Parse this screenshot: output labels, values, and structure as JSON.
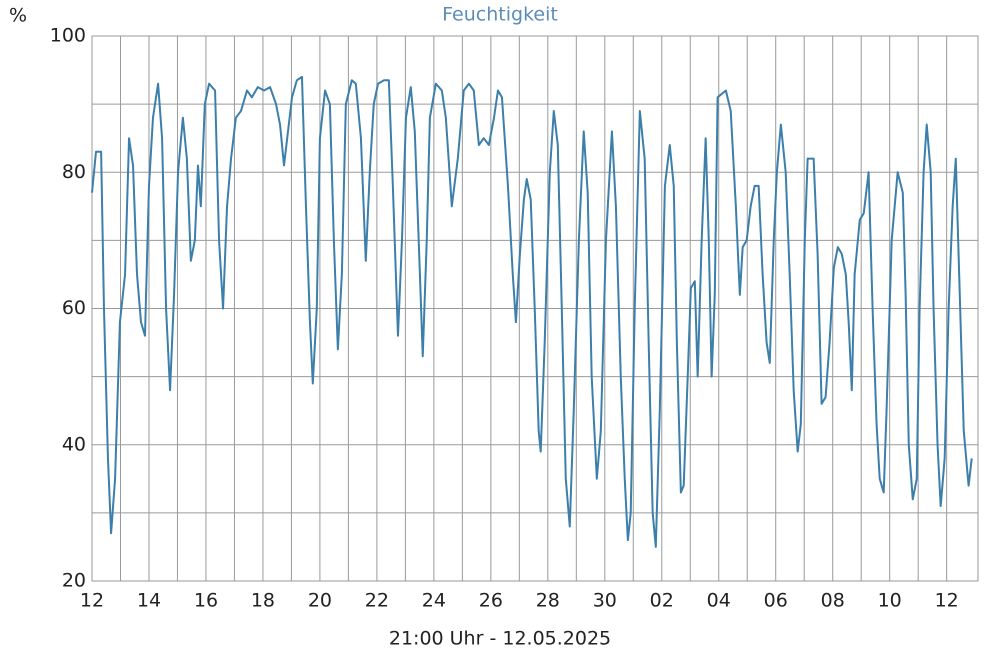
{
  "chart_data": {
    "type": "line",
    "title": "Feuchtigkeit",
    "y_label": "%",
    "x_label": "21:00 Uhr - 12.05.2025",
    "xlim": [
      0,
      31.1
    ],
    "ylim": [
      20,
      100
    ],
    "xticks": [
      {
        "value": 0,
        "label": "12"
      },
      {
        "value": 2,
        "label": "14"
      },
      {
        "value": 4,
        "label": "16"
      },
      {
        "value": 6,
        "label": "18"
      },
      {
        "value": 8,
        "label": "20"
      },
      {
        "value": 10,
        "label": "22"
      },
      {
        "value": 12,
        "label": "24"
      },
      {
        "value": 14,
        "label": "26"
      },
      {
        "value": 16,
        "label": "28"
      },
      {
        "value": 18,
        "label": "30"
      },
      {
        "value": 20,
        "label": "02"
      },
      {
        "value": 22,
        "label": "04"
      },
      {
        "value": 24,
        "label": "06"
      },
      {
        "value": 26,
        "label": "08"
      },
      {
        "value": 28,
        "label": "10"
      },
      {
        "value": 30,
        "label": "12"
      }
    ],
    "x_minor_ticks": [
      1,
      3,
      5,
      7,
      9,
      11,
      13,
      15,
      17,
      19,
      21,
      23,
      25,
      27,
      29
    ],
    "yticks": [
      20,
      40,
      60,
      80,
      100
    ],
    "y_minor_ticks": [
      30,
      50,
      70,
      90
    ],
    "grid": true,
    "x": [
      0,
      0.14,
      0.32,
      0.42,
      0.56,
      0.67,
      0.81,
      0.98,
      1.16,
      1.3,
      1.44,
      1.58,
      1.72,
      1.86,
      2.0,
      2.14,
      2.32,
      2.46,
      2.6,
      2.74,
      2.88,
      3.02,
      3.19,
      3.33,
      3.47,
      3.61,
      3.72,
      3.82,
      3.96,
      4.11,
      4.32,
      4.46,
      4.6,
      4.74,
      4.88,
      5.05,
      5.23,
      5.44,
      5.61,
      5.82,
      6.04,
      6.25,
      6.46,
      6.6,
      6.74,
      6.88,
      7.02,
      7.19,
      7.37,
      7.51,
      7.65,
      7.75,
      7.89,
      8.0,
      8.18,
      8.35,
      8.49,
      8.63,
      8.77,
      8.91,
      9.12,
      9.26,
      9.44,
      9.61,
      9.75,
      9.89,
      10.04,
      10.25,
      10.42,
      10.56,
      10.74,
      10.88,
      11.02,
      11.19,
      11.33,
      11.51,
      11.61,
      11.75,
      11.86,
      12.07,
      12.28,
      12.42,
      12.63,
      12.84,
      13.05,
      13.23,
      13.4,
      13.58,
      13.75,
      13.93,
      14.11,
      14.25,
      14.39,
      14.6,
      14.77,
      14.88,
      15.02,
      15.16,
      15.26,
      15.4,
      15.54,
      15.68,
      15.75,
      15.89,
      16.07,
      16.21,
      16.35,
      16.49,
      16.63,
      16.77,
      16.91,
      17.09,
      17.26,
      17.4,
      17.54,
      17.72,
      17.86,
      18.04,
      18.25,
      18.39,
      18.56,
      18.7,
      18.81,
      18.91,
      19.05,
      19.23,
      19.4,
      19.54,
      19.68,
      19.79,
      19.93,
      20.11,
      20.28,
      20.42,
      20.53,
      20.67,
      20.77,
      20.91,
      21.02,
      21.16,
      21.26,
      21.4,
      21.54,
      21.65,
      21.75,
      21.86,
      21.96,
      22.25,
      22.42,
      22.6,
      22.74,
      22.84,
      22.98,
      23.12,
      23.26,
      23.4,
      23.54,
      23.68,
      23.79,
      23.93,
      24.04,
      24.18,
      24.35,
      24.49,
      24.63,
      24.77,
      24.88,
      25.02,
      25.12,
      25.33,
      25.47,
      25.61,
      25.75,
      25.89,
      26.04,
      26.18,
      26.32,
      26.46,
      26.56,
      26.67,
      26.77,
      26.95,
      27.09,
      27.26,
      27.4,
      27.54,
      27.65,
      27.79,
      27.89,
      28.07,
      28.28,
      28.46,
      28.56,
      28.67,
      28.81,
      28.95,
      29.05,
      29.19,
      29.3,
      29.44,
      29.54,
      29.68,
      29.79,
      29.93,
      30.07,
      30.21,
      30.32,
      30.46,
      30.6,
      30.77,
      30.88
    ],
    "series": [
      {
        "name": "Feuchtigkeit",
        "color": "#3c7fab",
        "values": [
          77,
          83,
          83,
          60,
          38,
          27,
          35,
          58,
          65,
          85,
          81,
          65,
          58,
          56,
          78,
          88,
          93,
          85,
          60,
          48,
          62,
          80,
          88,
          82,
          67,
          70,
          81,
          75,
          90,
          93,
          92,
          70,
          60,
          75,
          82,
          88,
          89,
          92,
          91,
          92.5,
          92,
          92.5,
          90,
          87,
          81,
          86,
          91,
          93.5,
          94,
          75,
          58,
          49,
          60,
          85,
          92,
          90,
          70,
          54,
          65,
          90,
          93.5,
          93,
          85,
          67,
          80,
          90,
          93,
          93.5,
          93.5,
          78,
          56,
          70,
          88,
          92.5,
          86,
          65,
          53,
          70,
          88,
          93,
          92,
          88,
          75,
          82,
          92,
          93,
          92,
          84,
          85,
          84,
          88,
          92,
          91,
          78,
          65,
          58,
          68,
          76,
          79,
          76,
          60,
          42,
          39,
          55,
          80,
          89,
          84,
          60,
          35,
          28,
          45,
          70,
          86,
          77,
          50,
          35,
          42,
          70,
          86,
          75,
          50,
          35,
          26,
          30,
          60,
          89,
          82,
          55,
          30,
          25,
          45,
          78,
          84,
          78,
          55,
          33,
          34,
          50,
          63,
          64,
          50,
          70,
          85,
          70,
          50,
          62,
          91,
          92,
          89,
          75,
          62,
          69,
          70,
          75,
          78,
          78,
          65,
          55,
          52,
          70,
          80,
          87,
          80,
          65,
          48,
          39,
          43,
          70,
          82,
          82,
          68,
          46,
          47,
          55,
          66,
          69,
          68,
          65,
          58,
          48,
          65,
          73,
          74,
          80,
          60,
          43,
          35,
          33,
          45,
          70,
          80,
          77,
          62,
          40,
          32,
          35,
          60,
          80,
          87,
          80,
          60,
          40,
          31,
          38,
          60,
          75,
          82,
          62,
          42,
          34,
          38
        ]
      }
    ]
  }
}
